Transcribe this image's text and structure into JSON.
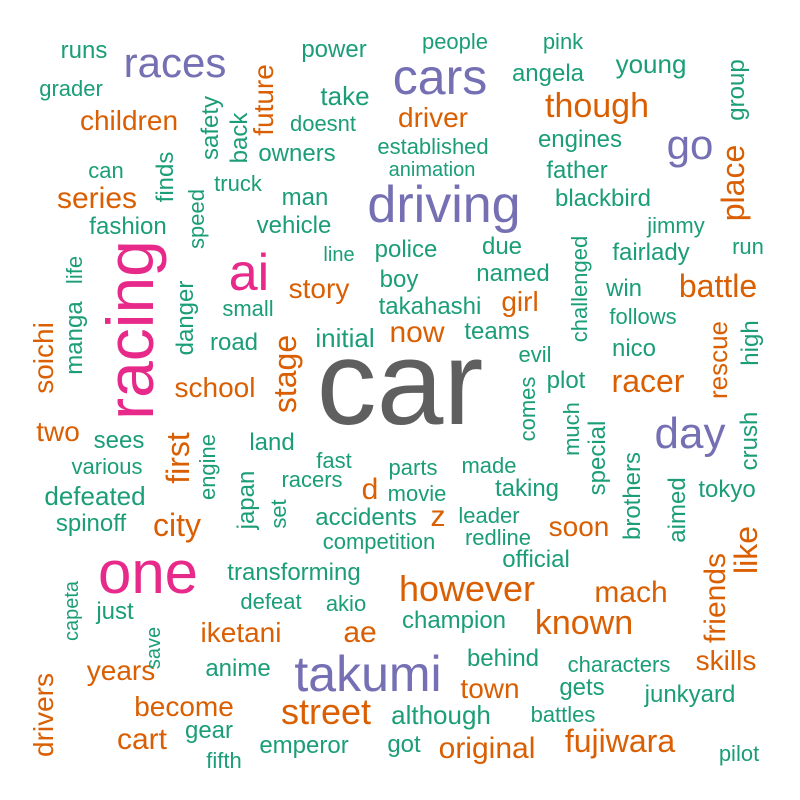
{
  "colors": {
    "gray": "#5f5f5f",
    "pink": "#e7298a",
    "purple": "#7570b3",
    "orange": "#d95f02",
    "green": "#1b9e77"
  },
  "words": [
    {
      "text": "car",
      "color": "gray"
    },
    {
      "text": "racing",
      "color": "pink"
    },
    {
      "text": "one",
      "color": "pink"
    },
    {
      "text": "ai",
      "color": "pink"
    },
    {
      "text": "driving",
      "color": "purple"
    },
    {
      "text": "cars",
      "color": "purple"
    },
    {
      "text": "takumi",
      "color": "purple"
    },
    {
      "text": "races",
      "color": "purple"
    },
    {
      "text": "day",
      "color": "purple"
    },
    {
      "text": "go",
      "color": "purple"
    },
    {
      "text": "though",
      "color": "orange"
    },
    {
      "text": "however",
      "color": "orange"
    },
    {
      "text": "street",
      "color": "orange"
    },
    {
      "text": "stage",
      "color": "orange"
    },
    {
      "text": "racer",
      "color": "orange"
    },
    {
      "text": "known",
      "color": "orange"
    },
    {
      "text": "fujiwara",
      "color": "orange"
    },
    {
      "text": "original",
      "color": "orange"
    },
    {
      "text": "place",
      "color": "orange"
    },
    {
      "text": "battle",
      "color": "orange"
    },
    {
      "text": "like",
      "color": "orange"
    },
    {
      "text": "friends",
      "color": "orange"
    },
    {
      "text": "mach",
      "color": "orange"
    },
    {
      "text": "first",
      "color": "orange"
    },
    {
      "text": "city",
      "color": "orange"
    },
    {
      "text": "series",
      "color": "orange"
    },
    {
      "text": "children",
      "color": "orange"
    },
    {
      "text": "driver",
      "color": "orange"
    },
    {
      "text": "future",
      "color": "orange"
    },
    {
      "text": "story",
      "color": "orange"
    },
    {
      "text": "now",
      "color": "orange"
    },
    {
      "text": "girl",
      "color": "orange"
    },
    {
      "text": "school",
      "color": "orange"
    },
    {
      "text": "two",
      "color": "orange"
    },
    {
      "text": "soichi",
      "color": "orange"
    },
    {
      "text": "d",
      "color": "orange"
    },
    {
      "text": "z",
      "color": "orange"
    },
    {
      "text": "soon",
      "color": "orange"
    },
    {
      "text": "iketani",
      "color": "orange"
    },
    {
      "text": "ae",
      "color": "orange"
    },
    {
      "text": "years",
      "color": "orange"
    },
    {
      "text": "become",
      "color": "orange"
    },
    {
      "text": "cart",
      "color": "orange"
    },
    {
      "text": "drivers",
      "color": "orange"
    },
    {
      "text": "town",
      "color": "orange"
    },
    {
      "text": "skills",
      "color": "orange"
    },
    {
      "text": "rescue",
      "color": "orange"
    },
    {
      "text": "runs",
      "color": "green"
    },
    {
      "text": "power",
      "color": "green"
    },
    {
      "text": "people",
      "color": "green"
    },
    {
      "text": "pink",
      "color": "green"
    },
    {
      "text": "young",
      "color": "green"
    },
    {
      "text": "angela",
      "color": "green"
    },
    {
      "text": "group",
      "color": "green"
    },
    {
      "text": "grader",
      "color": "green"
    },
    {
      "text": "take",
      "color": "green"
    },
    {
      "text": "doesnt",
      "color": "green"
    },
    {
      "text": "safety",
      "color": "green"
    },
    {
      "text": "back",
      "color": "green"
    },
    {
      "text": "owners",
      "color": "green"
    },
    {
      "text": "established",
      "color": "green"
    },
    {
      "text": "engines",
      "color": "green"
    },
    {
      "text": "animation",
      "color": "green"
    },
    {
      "text": "father",
      "color": "green"
    },
    {
      "text": "can",
      "color": "green"
    },
    {
      "text": "truck",
      "color": "green"
    },
    {
      "text": "finds",
      "color": "green"
    },
    {
      "text": "speed",
      "color": "green"
    },
    {
      "text": "man",
      "color": "green"
    },
    {
      "text": "blackbird",
      "color": "green"
    },
    {
      "text": "fashion",
      "color": "green"
    },
    {
      "text": "vehicle",
      "color": "green"
    },
    {
      "text": "jimmy",
      "color": "green"
    },
    {
      "text": "line",
      "color": "green"
    },
    {
      "text": "police",
      "color": "green"
    },
    {
      "text": "due",
      "color": "green"
    },
    {
      "text": "fairlady",
      "color": "green"
    },
    {
      "text": "run",
      "color": "green"
    },
    {
      "text": "life",
      "color": "green"
    },
    {
      "text": "manga",
      "color": "green"
    },
    {
      "text": "danger",
      "color": "green"
    },
    {
      "text": "boy",
      "color": "green"
    },
    {
      "text": "named",
      "color": "green"
    },
    {
      "text": "challenged",
      "color": "green"
    },
    {
      "text": "win",
      "color": "green"
    },
    {
      "text": "small",
      "color": "green"
    },
    {
      "text": "takahashi",
      "color": "green"
    },
    {
      "text": "follows",
      "color": "green"
    },
    {
      "text": "road",
      "color": "green"
    },
    {
      "text": "initial",
      "color": "green"
    },
    {
      "text": "teams",
      "color": "green"
    },
    {
      "text": "high",
      "color": "green"
    },
    {
      "text": "evil",
      "color": "green"
    },
    {
      "text": "nico",
      "color": "green"
    },
    {
      "text": "comes",
      "color": "green"
    },
    {
      "text": "plot",
      "color": "green"
    },
    {
      "text": "much",
      "color": "green"
    },
    {
      "text": "sees",
      "color": "green"
    },
    {
      "text": "land",
      "color": "green"
    },
    {
      "text": "special",
      "color": "green"
    },
    {
      "text": "crush",
      "color": "green"
    },
    {
      "text": "various",
      "color": "green"
    },
    {
      "text": "engine",
      "color": "green"
    },
    {
      "text": "fast",
      "color": "green"
    },
    {
      "text": "parts",
      "color": "green"
    },
    {
      "text": "made",
      "color": "green"
    },
    {
      "text": "brothers",
      "color": "green"
    },
    {
      "text": "japan",
      "color": "green"
    },
    {
      "text": "racers",
      "color": "green"
    },
    {
      "text": "taking",
      "color": "green"
    },
    {
      "text": "aimed",
      "color": "green"
    },
    {
      "text": "tokyo",
      "color": "green"
    },
    {
      "text": "defeated",
      "color": "green"
    },
    {
      "text": "movie",
      "color": "green"
    },
    {
      "text": "set",
      "color": "green"
    },
    {
      "text": "spinoff",
      "color": "green"
    },
    {
      "text": "accidents",
      "color": "green"
    },
    {
      "text": "leader",
      "color": "green"
    },
    {
      "text": "competition",
      "color": "green"
    },
    {
      "text": "redline",
      "color": "green"
    },
    {
      "text": "official",
      "color": "green"
    },
    {
      "text": "transforming",
      "color": "green"
    },
    {
      "text": "capeta",
      "color": "green"
    },
    {
      "text": "defeat",
      "color": "green"
    },
    {
      "text": "akio",
      "color": "green"
    },
    {
      "text": "just",
      "color": "green"
    },
    {
      "text": "save",
      "color": "green"
    },
    {
      "text": "champion",
      "color": "green"
    },
    {
      "text": "anime",
      "color": "green"
    },
    {
      "text": "behind",
      "color": "green"
    },
    {
      "text": "characters",
      "color": "green"
    },
    {
      "text": "gets",
      "color": "green"
    },
    {
      "text": "junkyard",
      "color": "green"
    },
    {
      "text": "although",
      "color": "green"
    },
    {
      "text": "battles",
      "color": "green"
    },
    {
      "text": "gear",
      "color": "green"
    },
    {
      "text": "emperor",
      "color": "green"
    },
    {
      "text": "got",
      "color": "green"
    },
    {
      "text": "fifth",
      "color": "green"
    },
    {
      "text": "pilot",
      "color": "green"
    }
  ]
}
